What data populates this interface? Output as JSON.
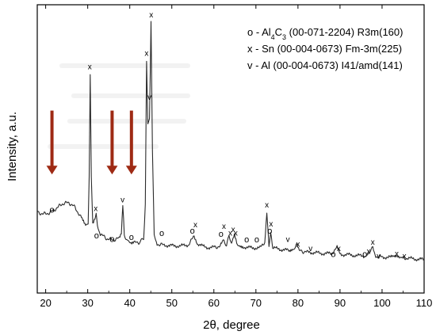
{
  "chart_data": {
    "type": "line",
    "xlabel": "2θ, degree",
    "ylabel": "Intensity, a.u.",
    "xlim": [
      18,
      110
    ],
    "ylim": [
      0,
      100
    ],
    "y_units": "relative (axis has no tick labels)",
    "x_ticks": [
      20,
      30,
      40,
      50,
      60,
      70,
      80,
      90,
      100,
      110
    ],
    "grid": false,
    "legend": {
      "placement": "top-right",
      "entries": [
        {
          "marker": "o",
          "parts": [
            [
              "Al"
            ],
            [
              "4",
              "sub"
            ],
            [
              "C"
            ],
            [
              "3",
              "sub"
            ],
            [
              " (00-071-2204) R3m(160)"
            ]
          ]
        },
        {
          "marker": "x",
          "parts": [
            [
              "Sn (00-004-0673) Fm-3m(225)"
            ]
          ]
        },
        {
          "marker": "v",
          "parts": [
            [
              "Al (00-004-0673) I41/amd(141)"
            ]
          ]
        }
      ]
    },
    "series": [
      {
        "points": [
          [
            18,
            26.8
          ],
          [
            19.5,
            26.1
          ],
          [
            21,
            26.6
          ],
          [
            22.5,
            28.2
          ],
          [
            24,
            30.0
          ],
          [
            25.5,
            30.4
          ],
          [
            27,
            28.6
          ],
          [
            28.5,
            24.5
          ],
          [
            29.5,
            21.5
          ],
          [
            30.1,
            22.5
          ],
          [
            30.35,
            40.0
          ],
          [
            30.6,
            78.5
          ],
          [
            30.85,
            40.0
          ],
          [
            31.2,
            22.0
          ],
          [
            31.7,
            24.0
          ],
          [
            32.0,
            26.5
          ],
          [
            32.3,
            22.0
          ],
          [
            33,
            18.6
          ],
          [
            34.5,
            16.9
          ],
          [
            36,
            16.4
          ],
          [
            37.5,
            17.0
          ],
          [
            38.0,
            18.5
          ],
          [
            38.35,
            29.5
          ],
          [
            38.7,
            18.5
          ],
          [
            39.5,
            15.8
          ],
          [
            40.3,
            15.2
          ],
          [
            41,
            15.3
          ],
          [
            42.5,
            15.6
          ],
          [
            43.3,
            17.0
          ],
          [
            43.7,
            30.0
          ],
          [
            44.0,
            83.5
          ],
          [
            44.3,
            60.0
          ],
          [
            44.7,
            62.0
          ],
          [
            45.05,
            98.5
          ],
          [
            45.4,
            50.0
          ],
          [
            45.8,
            18.0
          ],
          [
            46.5,
            14.8
          ],
          [
            48,
            14.5
          ],
          [
            50,
            14.2
          ],
          [
            52,
            14.1
          ],
          [
            54,
            14.6
          ],
          [
            55.3,
            17.8
          ],
          [
            56.2,
            14.8
          ],
          [
            58,
            13.6
          ],
          [
            60,
            13.6
          ],
          [
            61.5,
            14.0
          ],
          [
            62.4,
            16.5
          ],
          [
            63.0,
            14.0
          ],
          [
            63.6,
            17.8
          ],
          [
            64.2,
            15.0
          ],
          [
            64.9,
            18.0
          ],
          [
            65.6,
            14.0
          ],
          [
            67,
            13.8
          ],
          [
            69,
            13.4
          ],
          [
            71,
            13.4
          ],
          [
            72.1,
            15.5
          ],
          [
            72.6,
            27.0
          ],
          [
            73.1,
            14.5
          ],
          [
            73.5,
            19.5
          ],
          [
            74.0,
            13.4
          ],
          [
            76,
            12.8
          ],
          [
            78,
            12.4
          ],
          [
            79.0,
            12.8
          ],
          [
            79.6,
            15.2
          ],
          [
            80.3,
            12.3
          ],
          [
            82,
            11.8
          ],
          [
            84,
            11.6
          ],
          [
            86,
            11.3
          ],
          [
            88,
            11.3
          ],
          [
            89.3,
            13.5
          ],
          [
            90.0,
            11.0
          ],
          [
            92,
            10.8
          ],
          [
            94,
            10.5
          ],
          [
            96,
            10.4
          ],
          [
            97.2,
            12.2
          ],
          [
            97.8,
            13.5
          ],
          [
            98.5,
            10.2
          ],
          [
            100,
            10.0
          ],
          [
            102,
            9.8
          ],
          [
            103.6,
            10.8
          ],
          [
            104.5,
            9.6
          ],
          [
            106,
            9.5
          ],
          [
            108,
            9.2
          ],
          [
            110,
            9.0
          ]
        ]
      }
    ],
    "peak_markers": [
      {
        "x": 21.5,
        "y": 26.6,
        "symbol": "o"
      },
      {
        "x": 30.5,
        "y": 80.5,
        "symbol": "x"
      },
      {
        "x": 31.9,
        "y": 27.2,
        "symbol": "x"
      },
      {
        "x": 32.1,
        "y": 17.0,
        "symbol": "o"
      },
      {
        "x": 35.8,
        "y": 15.6,
        "symbol": "o"
      },
      {
        "x": 38.3,
        "y": 30.5,
        "symbol": "v"
      },
      {
        "x": 40.4,
        "y": 16.3,
        "symbol": "o"
      },
      {
        "x": 44.0,
        "y": 85.5,
        "symbol": "x"
      },
      {
        "x": 44.7,
        "y": 69.0,
        "symbol": "v"
      },
      {
        "x": 45.1,
        "y": 100.0,
        "symbol": "x"
      },
      {
        "x": 47.6,
        "y": 17.8,
        "symbol": "o"
      },
      {
        "x": 54.9,
        "y": 18.8,
        "symbol": "o"
      },
      {
        "x": 55.6,
        "y": 21.2,
        "symbol": "x"
      },
      {
        "x": 61.7,
        "y": 17.6,
        "symbol": "o"
      },
      {
        "x": 62.4,
        "y": 20.5,
        "symbol": "x"
      },
      {
        "x": 63.9,
        "y": 18.0,
        "symbol": "x"
      },
      {
        "x": 64.6,
        "y": 19.3,
        "symbol": "x"
      },
      {
        "x": 65.2,
        "y": 18.0,
        "symbol": "x"
      },
      {
        "x": 67.8,
        "y": 15.5,
        "symbol": "o"
      },
      {
        "x": 70.2,
        "y": 15.5,
        "symbol": "o"
      },
      {
        "x": 72.6,
        "y": 28.5,
        "symbol": "x"
      },
      {
        "x": 73.3,
        "y": 18.8,
        "symbol": "o"
      },
      {
        "x": 73.6,
        "y": 21.4,
        "symbol": "x"
      },
      {
        "x": 77.6,
        "y": 15.6,
        "symbol": "v"
      },
      {
        "x": 80.0,
        "y": 13.9,
        "symbol": "x"
      },
      {
        "x": 83.0,
        "y": 12.2,
        "symbol": "v"
      },
      {
        "x": 88.4,
        "y": 10.0,
        "symbol": "o"
      },
      {
        "x": 89.7,
        "y": 12.2,
        "symbol": "x"
      },
      {
        "x": 95.9,
        "y": 10.0,
        "symbol": "o"
      },
      {
        "x": 96.8,
        "y": 11.2,
        "symbol": "x"
      },
      {
        "x": 97.8,
        "y": 14.6,
        "symbol": "x"
      },
      {
        "x": 99.2,
        "y": 9.4,
        "symbol": "v"
      },
      {
        "x": 103.5,
        "y": 10.3,
        "symbol": "x"
      },
      {
        "x": 105.3,
        "y": 9.4,
        "symbol": "x"
      }
    ],
    "annotations": {
      "arrows": [
        {
          "x": 21.5,
          "y_top": 65,
          "y_tip": 41,
          "color": "#9e2a14"
        },
        {
          "x": 35.8,
          "y_top": 65,
          "y_tip": 41,
          "color": "#9e2a14"
        },
        {
          "x": 40.4,
          "y_top": 65,
          "y_tip": 41,
          "color": "#9e2a14"
        }
      ]
    },
    "colors": {
      "trace": "#2b2b2b",
      "axes": "#000000",
      "arrow": "#9e2a14"
    }
  }
}
